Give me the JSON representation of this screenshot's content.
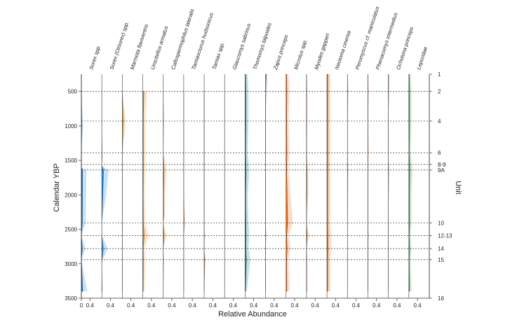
{
  "chart_data": {
    "type": "area",
    "title": "",
    "ylabel": "Calendar YBP",
    "xlabel": "Relative Abundance",
    "right_axis_label": "Unit",
    "ylim": [
      250,
      3500
    ],
    "y_ticks": [
      500,
      1000,
      1500,
      2000,
      2500,
      3000,
      3500
    ],
    "x_tick_labels_first": [
      "0",
      "0.4"
    ],
    "x_tick_label": "0.4",
    "exaggeration_factor": 4,
    "units": [
      {
        "label": "1",
        "age": 250
      },
      {
        "label": "2",
        "age": 500
      },
      {
        "label": "4",
        "age": 930
      },
      {
        "label": "6",
        "age": 1390
      },
      {
        "label": "8-9",
        "age": 1560
      },
      {
        "label": "9A",
        "age": 1640
      },
      {
        "label": "10",
        "age": 2410
      },
      {
        "label": "12-13",
        "age": 2590
      },
      {
        "label": "14",
        "age": 2780
      },
      {
        "label": "15",
        "age": 2940
      },
      {
        "label": "16",
        "age": 3500
      }
    ],
    "taxa": [
      {
        "name": "Sorex spp.",
        "color": "#1f86e0",
        "profile": [
          [
            0,
            500
          ],
          [
            0.02,
            1000
          ],
          [
            0,
            1400
          ],
          [
            0,
            1600
          ],
          [
            0.06,
            1640
          ],
          [
            0.05,
            2410
          ],
          [
            0,
            2590
          ],
          [
            0.05,
            2780
          ],
          [
            0,
            2940
          ],
          [
            0.07,
            3400
          ]
        ]
      },
      {
        "name": "Sorex (Otisorex) spp.",
        "color": "#1f86e0",
        "profile": [
          [
            0,
            500
          ],
          [
            0,
            1000
          ],
          [
            0.01,
            1450
          ],
          [
            0,
            1580
          ],
          [
            0.08,
            1640
          ],
          [
            0.05,
            2000
          ],
          [
            0,
            2410
          ],
          [
            0,
            2590
          ],
          [
            0.07,
            2780
          ],
          [
            0.01,
            2940
          ],
          [
            0,
            3000
          ],
          [
            0.01,
            3400
          ]
        ]
      },
      {
        "name": "Marmota flaviventris",
        "color": "#f5860c",
        "profile": [
          [
            0,
            500
          ],
          [
            0.04,
            930
          ],
          [
            0,
            1400
          ],
          [
            0,
            1640
          ],
          [
            0,
            2410
          ],
          [
            0,
            2590
          ],
          [
            0,
            2780
          ],
          [
            0,
            2940
          ],
          [
            0,
            3400
          ]
        ]
      },
      {
        "name": "Urocitellus armatus",
        "color": "#f5860c",
        "profile": [
          [
            0.05,
            500
          ],
          [
            0.03,
            930
          ],
          [
            0.03,
            1390
          ],
          [
            0.03,
            1640
          ],
          [
            0.02,
            2000
          ],
          [
            0.03,
            2410
          ],
          [
            0.07,
            2590
          ],
          [
            0.02,
            2780
          ],
          [
            0.03,
            2940
          ],
          [
            0.02,
            3400
          ]
        ]
      },
      {
        "name": "Callospermophilus lateralis",
        "color": "#f5860c",
        "profile": [
          [
            0,
            500
          ],
          [
            0.01,
            930
          ],
          [
            0,
            1390
          ],
          [
            0.04,
            1640
          ],
          [
            0.02,
            2000
          ],
          [
            0.02,
            2300
          ],
          [
            0,
            2410
          ],
          [
            0.04,
            2590
          ],
          [
            0,
            2780
          ],
          [
            0.01,
            2940
          ],
          [
            0,
            3400
          ]
        ]
      },
      {
        "name": "Tamiasciurus hudsonicus",
        "color": "#f5860c",
        "profile": [
          [
            0,
            500
          ],
          [
            0,
            930
          ],
          [
            0,
            1390
          ],
          [
            0,
            1640
          ],
          [
            0,
            2000
          ],
          [
            0.02,
            2410
          ],
          [
            0,
            2590
          ],
          [
            0,
            2780
          ],
          [
            0,
            2940
          ],
          [
            0,
            3400
          ]
        ]
      },
      {
        "name": "Tamias spp.",
        "color": "#f5860c",
        "profile": [
          [
            0,
            500
          ],
          [
            0,
            930
          ],
          [
            0,
            1390
          ],
          [
            0,
            1640
          ],
          [
            0,
            2000
          ],
          [
            0,
            2410
          ],
          [
            0.01,
            2590
          ],
          [
            0,
            2780
          ],
          [
            0.02,
            2940
          ],
          [
            0,
            3400
          ]
        ]
      },
      {
        "name": "Glaucomys sabrinus",
        "color": "#f5860c",
        "profile": [
          [
            0,
            500
          ],
          [
            0,
            930
          ],
          [
            0,
            1390
          ],
          [
            0,
            1640
          ],
          [
            0,
            2410
          ],
          [
            0,
            2590
          ],
          [
            0,
            2780
          ],
          [
            0,
            2940
          ],
          [
            0,
            3400
          ]
        ]
      },
      {
        "name": "Thomomys talpoides",
        "color": "#178a8a",
        "profile": [
          [
            0.03,
            250
          ],
          [
            0.04,
            500
          ],
          [
            0.04,
            930
          ],
          [
            0.03,
            1390
          ],
          [
            0.05,
            1640
          ],
          [
            0.03,
            2000
          ],
          [
            0.04,
            2410
          ],
          [
            0.05,
            2590
          ],
          [
            0.04,
            2780
          ],
          [
            0.06,
            2940
          ],
          [
            0.02,
            3400
          ]
        ]
      },
      {
        "name": "Zapus princeps",
        "color": "#2a2a9c",
        "profile": [
          [
            0.02,
            250
          ],
          [
            0.01,
            500
          ],
          [
            0,
            930
          ],
          [
            0,
            1390
          ],
          [
            0,
            1640
          ],
          [
            0,
            2410
          ],
          [
            0.01,
            2590
          ],
          [
            0,
            2780
          ],
          [
            0,
            2940
          ],
          [
            0,
            3400
          ]
        ]
      },
      {
        "name": "Microtus spp.",
        "color": "#ff6a0a",
        "profile": [
          [
            0.03,
            250
          ],
          [
            0.04,
            500
          ],
          [
            0.03,
            930
          ],
          [
            0.04,
            1390
          ],
          [
            0.03,
            1640
          ],
          [
            0.05,
            2000
          ],
          [
            0.08,
            2410
          ],
          [
            0.03,
            2590
          ],
          [
            0.05,
            2780
          ],
          [
            0.03,
            2940
          ],
          [
            0.04,
            3400
          ]
        ]
      },
      {
        "name": "Myodes gapperi",
        "color": "#ff6a0a",
        "profile": [
          [
            0,
            250
          ],
          [
            0.01,
            500
          ],
          [
            0.01,
            930
          ],
          [
            0,
            1390
          ],
          [
            0.02,
            1640
          ],
          [
            0.02,
            2000
          ],
          [
            0,
            2410
          ],
          [
            0.03,
            2590
          ],
          [
            0,
            2780
          ],
          [
            0.01,
            2940
          ],
          [
            0.01,
            3400
          ]
        ]
      },
      {
        "name": "Neotoma cinerea",
        "color": "#ff6a0a",
        "profile": [
          [
            0.04,
            250
          ],
          [
            0.04,
            500
          ],
          [
            0.04,
            930
          ],
          [
            0.04,
            1390
          ],
          [
            0.04,
            1640
          ],
          [
            0.04,
            2000
          ],
          [
            0.04,
            2410
          ],
          [
            0.05,
            2590
          ],
          [
            0.05,
            2780
          ],
          [
            0.04,
            2940
          ],
          [
            0.04,
            3400
          ]
        ]
      },
      {
        "name": "Peromyscus cf. maniculatus",
        "color": "#ff6a0a",
        "profile": [
          [
            0,
            250
          ],
          [
            0.01,
            500
          ],
          [
            0,
            930
          ],
          [
            0,
            1390
          ],
          [
            0.01,
            1640
          ],
          [
            0,
            2410
          ],
          [
            0,
            2590
          ],
          [
            0,
            2780
          ],
          [
            0,
            2940
          ],
          [
            0,
            3400
          ]
        ]
      },
      {
        "name": "Phenacomys intermedius",
        "color": "#ff6a0a",
        "profile": [
          [
            0,
            250
          ],
          [
            0.01,
            500
          ],
          [
            0,
            930
          ],
          [
            0.01,
            1390
          ],
          [
            0,
            1640
          ],
          [
            0,
            2410
          ],
          [
            0.01,
            2590
          ],
          [
            0,
            2780
          ],
          [
            0,
            2940
          ],
          [
            0,
            3400
          ]
        ]
      },
      {
        "name": "Ochotona princeps",
        "color": "#138a1c",
        "profile": [
          [
            0.01,
            250
          ],
          [
            0.01,
            500
          ],
          [
            0,
            930
          ],
          [
            0,
            1390
          ],
          [
            0.01,
            1640
          ],
          [
            0,
            2410
          ],
          [
            0,
            2590
          ],
          [
            0,
            2780
          ],
          [
            0,
            2940
          ],
          [
            0,
            3400
          ]
        ]
      },
      {
        "name": "Leporidae",
        "color": "#138a1c",
        "profile": [
          [
            0.02,
            250
          ],
          [
            0.03,
            500
          ],
          [
            0.03,
            930
          ],
          [
            0.02,
            1390
          ],
          [
            0.04,
            1640
          ],
          [
            0.03,
            2000
          ],
          [
            0.03,
            2410
          ],
          [
            0.02,
            2590
          ],
          [
            0.03,
            2780
          ],
          [
            0.02,
            2940
          ],
          [
            0.03,
            3400
          ]
        ]
      }
    ]
  }
}
